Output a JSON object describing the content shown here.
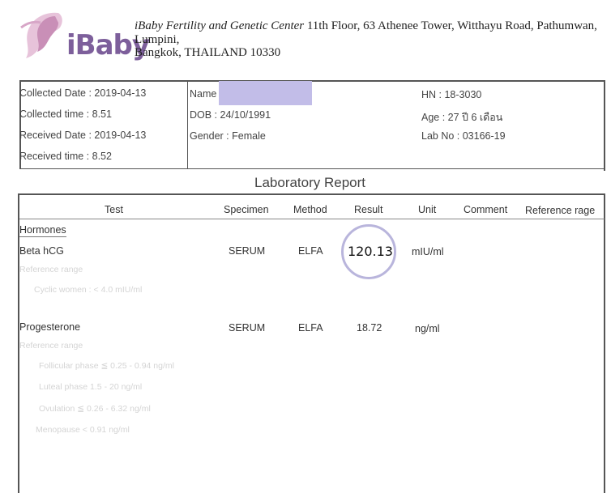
{
  "header": {
    "logo_text": "iBaby",
    "center_name": "iBaby Fertility and Genetic Center",
    "address_line1": " 11th Floor, 63 Athenee Tower, Witthayu Road, Pathumwan,",
    "address_line2": "Lumpini,",
    "address_line3": "Bangkok, THAILAND 10330"
  },
  "info": {
    "collected_date": "Collected Date : 2019-04-13",
    "collected_time": "Collected time : 8.51",
    "received_date": "Received Date : 2019-04-13",
    "received_time": "Received time : 8.52",
    "name_label": "Name",
    "dob": "DOB : 24/10/1991",
    "gender": "Gender : Female",
    "hn": "HN : 18-3030",
    "age": "Age : 27 ปี 6 เดือน",
    "lab_no": "Lab No : 03166-19"
  },
  "title": "Laboratory Report",
  "columns": {
    "test": "Test",
    "specimen": "Specimen",
    "method": "Method",
    "result": "Result",
    "unit": "Unit",
    "comment": "Comment",
    "reference": "Reference rage"
  },
  "section_label": "Hormones",
  "rows": {
    "hcg": {
      "test": "Beta hCG",
      "specimen": "SERUM",
      "method": "ELFA",
      "result": "120.13",
      "unit": "mIU/ml",
      "ref_label": "Reference range",
      "ref_line1": "Cyclic women : < 4.0 mIU/ml"
    },
    "prog": {
      "test": "Progesterone",
      "specimen": "SERUM",
      "method": "ELFA",
      "result": "18.72",
      "unit": "ng/ml",
      "ref_label": "Reference range",
      "ref_line1": "Follicular phase ≦ 0.25 - 0.94 ng/ml",
      "ref_line2": "Luteal phase 1.5 - 20 ng/ml",
      "ref_line3": "Ovulation ≦ 0.26 - 6.32 ng/ml",
      "ref_line4": "Menopause < 0.91 ng/ml"
    }
  },
  "colors": {
    "logo_purple": "#7d5f9b",
    "logo_pink": "#d7a6c7",
    "highlight_circle": "#b9b5dc",
    "redaction": "#c2bde8"
  }
}
